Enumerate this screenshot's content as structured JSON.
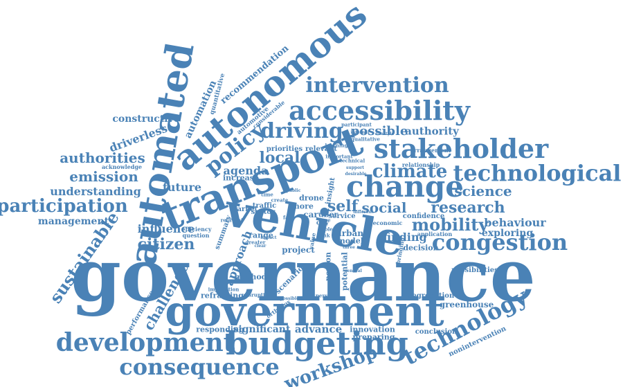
{
  "cloud": {
    "color": "#4a82b6",
    "background": "#ffffff",
    "words": {
      "governance": "governance",
      "vehicle": "vehicle",
      "government": "government",
      "transport": "transport",
      "automated": "automated",
      "autonomous": "autonomous",
      "budgeting": "budgeting",
      "development": "development",
      "accessibility": "accessibility",
      "stakeholder": "stakeholder",
      "technological": "technological",
      "change": "change",
      "congestion": "congestion",
      "intervention": "intervention",
      "consequence": "consequence",
      "technology": "technology",
      "participation": "participation",
      "driving": "driving",
      "policy": "policy",
      "climate": "climate",
      "workshop": "workshop",
      "mobility": "mobility",
      "research": "research",
      "science": "science",
      "citizen": "citizen",
      "sustainable": "sustainable",
      "authorities": "authorities",
      "emission": "emission",
      "challenge": "challenge",
      "understanding": "understanding",
      "local": "local",
      "possible": "possible",
      "self": "self",
      "social": "social",
      "future": "future",
      "driverless": "driverless",
      "constructive": "constructive",
      "management": "management",
      "influence": "influence",
      "behaviour": "behaviour",
      "exploring": "exploring",
      "authority": "authority",
      "agenda": "agenda",
      "automation": "automation",
      "recommendation": "recommendation",
      "approach": "approach",
      "finding": "finding",
      "greenhouse": "greenhouse",
      "advance": "advance",
      "significant": "significant",
      "responding": "responding",
      "reframing": "reframing",
      "innovation": "innovation",
      "preparing": "preparing",
      "conclusion": "conclusion",
      "nonintervention": "nonintervention",
      "performance": "performance",
      "segregation": "segregation",
      "possibilities": "possibilities",
      "decision": "decision",
      "potential": "potential",
      "person": "person",
      "project": "project",
      "urban": "urban",
      "model": "model",
      "method": "method",
      "scenario": "scenario",
      "range": "range",
      "drone": "drone",
      "priorities": "priorities",
      "relevant": "relevant",
      "increase": "increase",
      "traffic": "traffic",
      "sector": "sector",
      "market": "market",
      "summary": "summary",
      "car": "car",
      "uber": "uber",
      "more": "more",
      "service": "service",
      "city": "city",
      "confidence": "confidence",
      "quantitative": "quantitative",
      "automotive": "automotive",
      "acknowledge": "acknowledge",
      "considerable": "considerable",
      "efficiency": "efficiency",
      "question": "question",
      "relationship": "relationship",
      "arrangement": "arrangement",
      "application": "application",
      "economic": "economic",
      "participant": "participant",
      "qualitative": "qualitative",
      "learning": "learning",
      "important": "important",
      "technical": "technical",
      "reinvent": "reinvent",
      "implication": "implication",
      "disruption": "disruption",
      "personal": "personal",
      "create": "create",
      "insight": "insight",
      "bringing": "bringing",
      "orthodox": "orthodox",
      "value": "value",
      "greater": "greater",
      "time": "time",
      "fair": "fair",
      "role": "role",
      "link": "link",
      "case": "case",
      "public": "public",
      "internal": "internal",
      "desirable": "desirable",
      "support": "support",
      "general": "general",
      "impact": "impact",
      "lifestyle": "lifestyle",
      "three": "three",
      "impossible": "impossible",
      "clear": "clear",
      "different": "different"
    }
  }
}
